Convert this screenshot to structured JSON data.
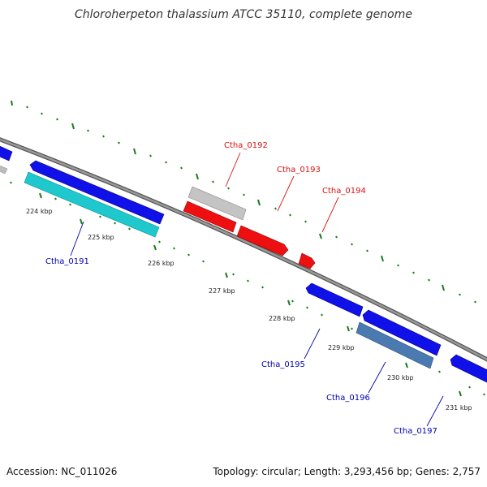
{
  "title": "Chloroherpeton thalassium ATCC 35110, complete genome",
  "footer": {
    "accession": "Accession: NC_011026",
    "summary": "Topology: circular; Length: 3,293,456 bp; Genes: 2,757"
  },
  "scale_labels": [
    "224 kbp",
    "225 kbp",
    "226 kbp",
    "227 kbp",
    "228 kbp",
    "229 kbp",
    "230 kbp",
    "231 kbp"
  ],
  "gene_labels": {
    "ctha_0191": "Ctha_0191",
    "ctha_0192": "Ctha_0192",
    "ctha_0193": "Ctha_0193",
    "ctha_0194": "Ctha_0194",
    "ctha_0195": "Ctha_0195",
    "ctha_0196": "Ctha_0196",
    "ctha_0197": "Ctha_0197"
  },
  "colors": {
    "backbone": "#7f7f7f",
    "blue_gene": "#1010e8",
    "cyan_gene": "#1ec8cc",
    "red_gene": "#ee1010",
    "grey_gene": "#bdbdbd",
    "steel_gene": "#4a7ab0",
    "tick_green": "#1a7a1a",
    "label_red": "#dd1010",
    "label_blue": "#0000b0"
  }
}
